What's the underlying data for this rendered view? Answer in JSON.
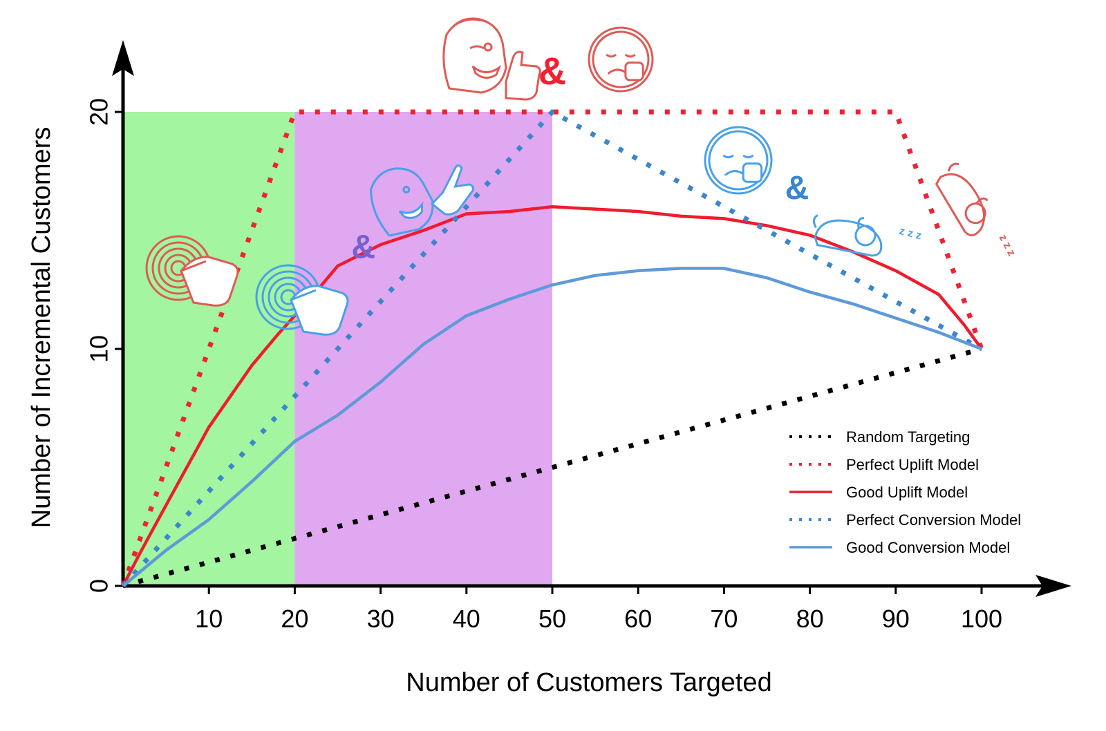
{
  "chart_data": {
    "type": "line",
    "title": "",
    "xlabel": "Number of Customers Targeted",
    "ylabel": "Number of Incremental Customers",
    "xlim": [
      0,
      104
    ],
    "ylim": [
      0,
      22
    ],
    "x_ticks": [
      10,
      20,
      30,
      40,
      50,
      60,
      70,
      80,
      90,
      100
    ],
    "x_tick_labels": [
      "10",
      "20",
      "30",
      "40",
      "50",
      "60",
      "70",
      "80",
      "90",
      "100"
    ],
    "y_ticks": [
      0,
      10,
      20
    ],
    "y_tick_labels": [
      "0",
      "10",
      "20"
    ],
    "grid": false,
    "legend_position": "bottom-right",
    "regions": [
      {
        "x_range": [
          0,
          20
        ],
        "y_range": [
          0,
          20
        ],
        "color": "#a3f5a0"
      },
      {
        "x_range": [
          20,
          50
        ],
        "y_range": [
          0,
          20
        ],
        "color": "#e0a8f0"
      }
    ],
    "series": [
      {
        "name": "Random Targeting",
        "style": "dotted",
        "color": "#000000",
        "x": [
          0,
          100
        ],
        "y": [
          0,
          10
        ]
      },
      {
        "name": "Perfect Uplift Model",
        "style": "dotted",
        "color": "#ee2233",
        "x": [
          0,
          20,
          90,
          100
        ],
        "y": [
          0,
          20,
          20,
          10
        ]
      },
      {
        "name": "Good Uplift Model",
        "style": "solid",
        "color": "#ee1c2e",
        "x": [
          0,
          2,
          5,
          10,
          15,
          18,
          20,
          22,
          25,
          30,
          35,
          40,
          45,
          50,
          55,
          60,
          65,
          70,
          75,
          80,
          85,
          90,
          95,
          98,
          100
        ],
        "y": [
          0,
          1.4,
          3.4,
          6.7,
          9.3,
          10.6,
          11.4,
          12.2,
          13.5,
          14.4,
          15.0,
          15.7,
          15.8,
          16.0,
          15.9,
          15.8,
          15.6,
          15.5,
          15.2,
          14.8,
          14.1,
          13.3,
          12.3,
          11.0,
          10.0
        ]
      },
      {
        "name": "Perfect Conversion Model",
        "style": "dotted",
        "color": "#3b86cc",
        "x": [
          0,
          50,
          100
        ],
        "y": [
          0,
          20,
          10
        ]
      },
      {
        "name": "Good Conversion Model",
        "style": "solid",
        "color": "#5e9ad8",
        "x": [
          0,
          5,
          10,
          15,
          20,
          25,
          30,
          35,
          40,
          45,
          50,
          55,
          60,
          65,
          70,
          75,
          80,
          85,
          90,
          95,
          100
        ],
        "y": [
          0,
          1.5,
          2.8,
          4.4,
          6.1,
          7.2,
          8.6,
          10.2,
          11.4,
          12.1,
          12.7,
          13.1,
          13.3,
          13.4,
          13.4,
          13.0,
          12.4,
          11.9,
          11.3,
          10.7,
          10.0
        ]
      }
    ],
    "annotations": [
      {
        "text": "&",
        "x": 50,
        "y": 21.6,
        "color": "#ee2233"
      },
      {
        "text": "&",
        "x": 78.5,
        "y": 16.7,
        "color": "#3b86cc"
      },
      {
        "text": "&",
        "x": 28,
        "y": 14.2,
        "color": "#7a5fd0"
      }
    ],
    "icons": [
      {
        "name": "winking-thumbs-up-face-icon",
        "color": "#e05a55"
      },
      {
        "name": "sad-thumbs-down-face-icon",
        "color": "#e05a55"
      },
      {
        "name": "target-tap-icon",
        "color": "#e05a55"
      },
      {
        "name": "target-tap-icon",
        "color": "#4aa0e8"
      },
      {
        "name": "winking-pointing-face-icon",
        "color": "#4aa0e8"
      },
      {
        "name": "sad-thumbs-down-face-icon",
        "color": "#4aa0e8"
      },
      {
        "name": "sleeping-dog-icon",
        "color": "#4aa0e8"
      },
      {
        "name": "sleeping-dog-icon",
        "color": "#e05a55"
      }
    ]
  }
}
